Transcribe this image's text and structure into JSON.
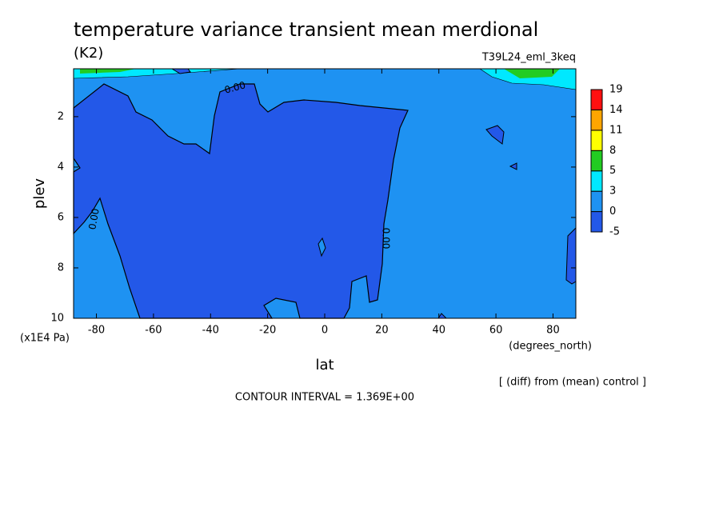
{
  "chart_data": {
    "type": "contour",
    "title": "temperature variance transient mean merdional",
    "subtitle": "(K2)",
    "dataset": "T39L24_eml_3keq",
    "x_label": "lat",
    "x_units": "(degrees_north)",
    "y_label": "plev",
    "y_units": "(x1E4 Pa)",
    "xlim": [
      -88,
      88
    ],
    "ylim": [
      10,
      0.1
    ],
    "xticks": [
      -80,
      -60,
      -40,
      -20,
      0,
      20,
      40,
      60,
      80
    ],
    "yticks": [
      2,
      4,
      6,
      8,
      10
    ],
    "levels": [
      -5,
      0,
      3,
      5,
      8,
      11,
      14,
      19
    ],
    "colors": [
      "#2358e8",
      "#1e92f2",
      "#00e8ff",
      "#22cc22",
      "#ffff00",
      "#ffa500",
      "#ff1010"
    ],
    "contour_labels": [
      "0.00",
      "0.00",
      "0.00"
    ],
    "note": "[ (diff) from (mean) control ]",
    "footer": "CONTOUR INTERVAL = 1.369E+00"
  }
}
